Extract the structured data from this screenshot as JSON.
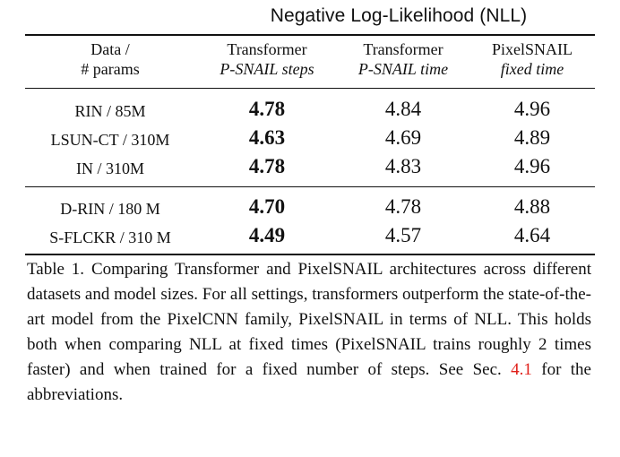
{
  "table": {
    "super_header": "Negative Log-Likelihood (NLL)",
    "columns": [
      {
        "line1": "Data /",
        "line2": "# params"
      },
      {
        "line1": "Transformer",
        "line2": "P-SNAIL steps"
      },
      {
        "line1": "Transformer",
        "line2": "P-SNAIL time"
      },
      {
        "line1": "PixelSNAIL",
        "line2": "fixed time"
      }
    ],
    "groups": [
      [
        {
          "label": "RIN / 85M",
          "values": [
            "4.78",
            "4.84",
            "4.96"
          ]
        },
        {
          "label": "LSUN-CT / 310M",
          "values": [
            "4.63",
            "4.69",
            "4.89"
          ]
        },
        {
          "label": "IN / 310M",
          "values": [
            "4.78",
            "4.83",
            "4.96"
          ]
        }
      ],
      [
        {
          "label": "D-RIN / 180 M",
          "values": [
            "4.70",
            "4.78",
            "4.88"
          ]
        },
        {
          "label": "S-FLCKR / 310 M",
          "values": [
            "4.49",
            "4.57",
            "4.64"
          ]
        }
      ]
    ]
  },
  "caption": {
    "text": "Table 1. Comparing Transformer and PixelSNAIL architectures across different datasets and model sizes.  For all settings, transformers outperform the state-of-the-art model from the PixelCNN family, PixelSNAIL in terms of NLL. This holds both when comparing NLL at fixed times (PixelSNAIL trains roughly 2 times faster) and when trained for a fixed number of steps. See Sec. ",
    "ref": "4.1",
    "tail": " for the abbreviations."
  },
  "colors": {
    "text": "#111111",
    "reference_link": "#e0201a",
    "background": "#ffffff"
  }
}
